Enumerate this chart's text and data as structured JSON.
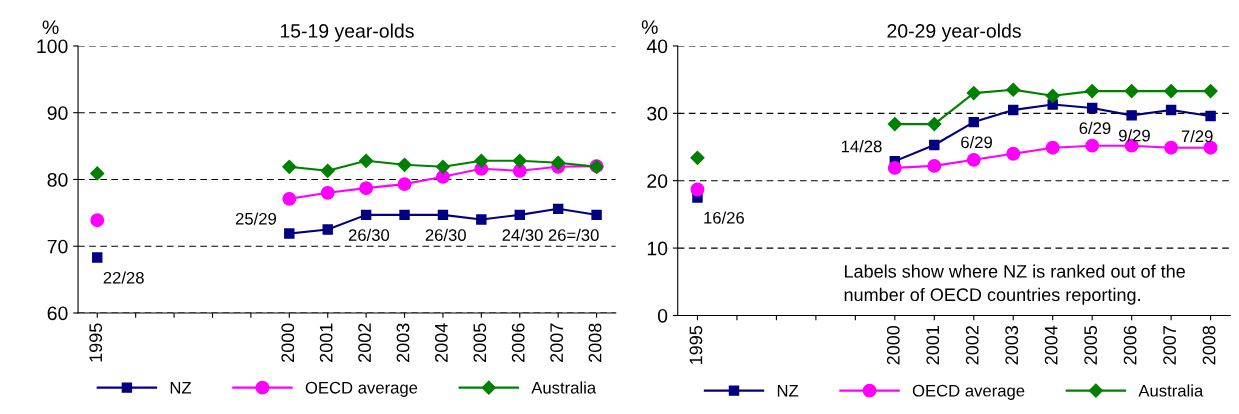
{
  "chart_data": [
    {
      "type": "line",
      "title": "15-19 year-olds",
      "ylabel": "%",
      "categories": [
        "1995",
        null,
        null,
        null,
        null,
        "2000",
        "2001",
        "2002",
        "2003",
        "2004",
        "2005",
        "2006",
        "2007",
        "2008"
      ],
      "ylim": [
        60,
        100
      ],
      "yticks": [
        60,
        70,
        80,
        90,
        100
      ],
      "grid": "y",
      "legend": "bottom",
      "series": [
        {
          "name": "NZ",
          "color": "#000080",
          "marker": "square",
          "values": [
            68.3,
            null,
            null,
            null,
            null,
            71.9,
            72.5,
            74.7,
            74.7,
            74.7,
            74.0,
            74.7,
            75.6,
            74.7
          ]
        },
        {
          "name": "OECD average",
          "color": "#ff00ff",
          "marker": "circle",
          "values": [
            73.9,
            null,
            null,
            null,
            null,
            77.1,
            78.0,
            78.7,
            79.3,
            80.4,
            81.6,
            81.3,
            81.9,
            82.0
          ]
        },
        {
          "name": "Australia",
          "color": "#008000",
          "marker": "diamond",
          "values": [
            80.9,
            null,
            null,
            null,
            null,
            81.9,
            81.3,
            82.8,
            82.2,
            81.9,
            82.8,
            82.8,
            82.5,
            81.9
          ]
        }
      ],
      "annotations": [
        {
          "text": "22/28",
          "x": "1995",
          "y": 68.3
        },
        {
          "text": "25/29",
          "x": "2000",
          "y": 71.9
        },
        {
          "text": "26/30",
          "x": "2002",
          "y": 74.7
        },
        {
          "text": "26/30",
          "x": "2004",
          "y": 74.7
        },
        {
          "text": "24/30",
          "x": "2006",
          "y": 74.7
        },
        {
          "text": "26=/30",
          "x": "2008",
          "y": 74.7
        }
      ]
    },
    {
      "type": "line",
      "title": "20-29 year-olds",
      "ylabel": "%",
      "categories": [
        "1995",
        null,
        null,
        null,
        null,
        "2000",
        "2001",
        "2002",
        "2003",
        "2004",
        "2005",
        "2006",
        "2007",
        "2008"
      ],
      "ylim": [
        0,
        40
      ],
      "yticks": [
        0,
        10,
        20,
        30,
        40
      ],
      "grid": "y",
      "legend": "bottom",
      "series": [
        {
          "name": "NZ",
          "color": "#000080",
          "marker": "square",
          "values": [
            17.5,
            null,
            null,
            null,
            null,
            22.9,
            25.3,
            28.7,
            30.5,
            31.3,
            30.8,
            29.7,
            30.5,
            29.6
          ]
        },
        {
          "name": "OECD average",
          "color": "#ff00ff",
          "marker": "circle",
          "values": [
            18.7,
            null,
            null,
            null,
            null,
            21.9,
            22.2,
            23.1,
            24.0,
            24.9,
            25.2,
            25.2,
            24.9,
            24.9
          ]
        },
        {
          "name": "Australia",
          "color": "#008000",
          "marker": "diamond",
          "values": [
            23.4,
            null,
            null,
            null,
            null,
            28.4,
            28.4,
            33.0,
            33.5,
            32.6,
            33.3,
            33.3,
            33.3,
            33.3
          ]
        }
      ],
      "annotations": [
        {
          "text": "16/26",
          "x": "1995",
          "y": 17.5
        },
        {
          "text": "14/28",
          "x": "2000",
          "y": 22.9
        },
        {
          "text": "6/29",
          "x": "2002",
          "y": 28.7
        },
        {
          "text": "6/29",
          "x": "2005",
          "y": 30.8
        },
        {
          "text": "9/29",
          "x": "2006",
          "y": 29.7
        },
        {
          "text": "7/29",
          "x": "2008",
          "y": 29.6
        },
        "Labels show where NZ is ranked out of the number of OECD countries reporting."
      ]
    }
  ]
}
